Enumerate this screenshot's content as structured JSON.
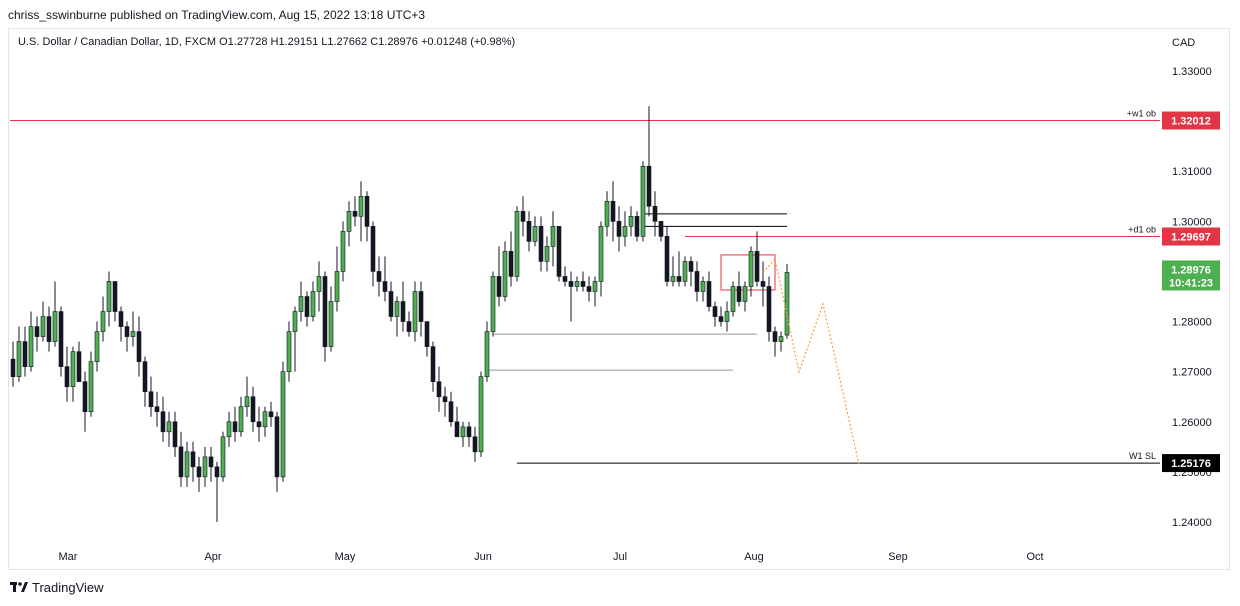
{
  "publisher_line": "chriss_sswinburne published on TradingView.com, Aug 15, 2022 13:18 UTC+3",
  "symbol_line": "U.S. Dollar / Canadian Dollar, 1D, FXCM  O1.27728  H1.29151  L1.27662  C1.28976  +0.01248 (+0.98%)",
  "currency": "CAD",
  "footer_brand": "TradingView",
  "icons": {
    "brand": "tradingview-logo-icon"
  },
  "colors": {
    "up": "#4caf50",
    "down": "#131722",
    "level": "#e03646",
    "projection": "#f7a23a"
  },
  "chart_data": {
    "type": "candlestick",
    "title": "U.S. Dollar / Canadian Dollar, 1D, FXCM",
    "ylabel": "CAD",
    "ylim": [
      1.2335,
      1.3425
    ],
    "y_ticks": [
      "1.24000",
      "1.25000",
      "1.26000",
      "1.27000",
      "1.28000",
      "1.29000",
      "1.30000",
      "1.31000",
      "1.32000",
      "1.33000"
    ],
    "x_labels": [
      "Mar",
      "Apr",
      "May",
      "Jun",
      "Jul",
      "Aug",
      "Sep",
      "Oct"
    ],
    "last_price": {
      "value": "1.28976",
      "countdown": "10:41:23"
    },
    "levels": [
      {
        "label": "+w1 ob",
        "value": 1.32012,
        "value_text": "1.32012",
        "color": "#e03646",
        "text_color": "#ffffff"
      },
      {
        "label": "+d1 ob",
        "value": 1.29697,
        "value_text": "1.29697",
        "color": "#e03646",
        "text_color": "#ffffff"
      },
      {
        "label": "W1 SL",
        "value": 1.25176,
        "value_text": "1.25176",
        "color": "#000000",
        "text_color": "#ffffff"
      }
    ],
    "candles": [
      [
        1.2725,
        1.276,
        1.267,
        1.269
      ],
      [
        1.269,
        1.279,
        1.268,
        1.276
      ],
      [
        1.276,
        1.279,
        1.269,
        1.271
      ],
      [
        1.271,
        1.282,
        1.27,
        1.279
      ],
      [
        1.279,
        1.281,
        1.274,
        1.277
      ],
      [
        1.277,
        1.284,
        1.276,
        1.281
      ],
      [
        1.281,
        1.283,
        1.274,
        1.276
      ],
      [
        1.276,
        1.288,
        1.275,
        1.282
      ],
      [
        1.282,
        1.283,
        1.269,
        1.271
      ],
      [
        1.271,
        1.275,
        1.264,
        1.267
      ],
      [
        1.267,
        1.275,
        1.264,
        1.274
      ],
      [
        1.274,
        1.276,
        1.268,
        1.268
      ],
      [
        1.268,
        1.27,
        1.258,
        1.262
      ],
      [
        1.262,
        1.274,
        1.261,
        1.272
      ],
      [
        1.272,
        1.28,
        1.27,
        1.278
      ],
      [
        1.278,
        1.285,
        1.276,
        1.282
      ],
      [
        1.282,
        1.29,
        1.279,
        1.288
      ],
      [
        1.288,
        1.288,
        1.28,
        1.282
      ],
      [
        1.282,
        1.283,
        1.276,
        1.279
      ],
      [
        1.279,
        1.28,
        1.274,
        1.277
      ],
      [
        1.277,
        1.282,
        1.275,
        1.278
      ],
      [
        1.278,
        1.281,
        1.269,
        1.272
      ],
      [
        1.272,
        1.273,
        1.263,
        1.266
      ],
      [
        1.266,
        1.269,
        1.261,
        1.263
      ],
      [
        1.263,
        1.266,
        1.259,
        1.262
      ],
      [
        1.262,
        1.265,
        1.256,
        1.258
      ],
      [
        1.258,
        1.262,
        1.255,
        1.26
      ],
      [
        1.26,
        1.262,
        1.253,
        1.255
      ],
      [
        1.255,
        1.258,
        1.247,
        1.249
      ],
      [
        1.249,
        1.256,
        1.247,
        1.254
      ],
      [
        1.254,
        1.256,
        1.248,
        1.251
      ],
      [
        1.251,
        1.253,
        1.246,
        1.249
      ],
      [
        1.249,
        1.255,
        1.247,
        1.253
      ],
      [
        1.253,
        1.255,
        1.248,
        1.251
      ],
      [
        1.251,
        1.252,
        1.24,
        1.249
      ],
      [
        1.249,
        1.258,
        1.248,
        1.257
      ],
      [
        1.257,
        1.262,
        1.255,
        1.26
      ],
      [
        1.26,
        1.263,
        1.256,
        1.258
      ],
      [
        1.258,
        1.265,
        1.257,
        1.263
      ],
      [
        1.263,
        1.269,
        1.261,
        1.265
      ],
      [
        1.265,
        1.267,
        1.258,
        1.26
      ],
      [
        1.26,
        1.263,
        1.256,
        1.259
      ],
      [
        1.259,
        1.263,
        1.257,
        1.262
      ],
      [
        1.262,
        1.264,
        1.259,
        1.261
      ],
      [
        1.261,
        1.262,
        1.246,
        1.249
      ],
      [
        1.249,
        1.272,
        1.248,
        1.27
      ],
      [
        1.27,
        1.28,
        1.268,
        1.278
      ],
      [
        1.278,
        1.283,
        1.27,
        1.282
      ],
      [
        1.282,
        1.288,
        1.28,
        1.285
      ],
      [
        1.285,
        1.286,
        1.279,
        1.281
      ],
      [
        1.281,
        1.288,
        1.28,
        1.286
      ],
      [
        1.286,
        1.292,
        1.282,
        1.289
      ],
      [
        1.289,
        1.29,
        1.272,
        1.275
      ],
      [
        1.275,
        1.287,
        1.274,
        1.284
      ],
      [
        1.284,
        1.295,
        1.282,
        1.29
      ],
      [
        1.29,
        1.3,
        1.288,
        1.298
      ],
      [
        1.298,
        1.304,
        1.295,
        1.302
      ],
      [
        1.302,
        1.305,
        1.299,
        1.301
      ],
      [
        1.301,
        1.308,
        1.296,
        1.305
      ],
      [
        1.305,
        1.306,
        1.296,
        1.299
      ],
      [
        1.299,
        1.3,
        1.287,
        1.29
      ],
      [
        1.29,
        1.293,
        1.285,
        1.288
      ],
      [
        1.288,
        1.293,
        1.284,
        1.286
      ],
      [
        1.286,
        1.288,
        1.28,
        1.281
      ],
      [
        1.281,
        1.285,
        1.277,
        1.284
      ],
      [
        1.284,
        1.288,
        1.278,
        1.28
      ],
      [
        1.28,
        1.282,
        1.277,
        1.278
      ],
      [
        1.278,
        1.288,
        1.276,
        1.286
      ],
      [
        1.286,
        1.288,
        1.277,
        1.28
      ],
      [
        1.28,
        1.28,
        1.273,
        1.275
      ],
      [
        1.275,
        1.276,
        1.266,
        1.268
      ],
      [
        1.268,
        1.271,
        1.262,
        1.265
      ],
      [
        1.265,
        1.267,
        1.261,
        1.264
      ],
      [
        1.264,
        1.266,
        1.259,
        1.26
      ],
      [
        1.26,
        1.263,
        1.257,
        1.257
      ],
      [
        1.257,
        1.26,
        1.255,
        1.259
      ],
      [
        1.259,
        1.26,
        1.255,
        1.257
      ],
      [
        1.257,
        1.259,
        1.252,
        1.254
      ],
      [
        1.254,
        1.27,
        1.253,
        1.269
      ],
      [
        1.269,
        1.28,
        1.268,
        1.278
      ],
      [
        1.278,
        1.29,
        1.277,
        1.289
      ],
      [
        1.289,
        1.295,
        1.283,
        1.285
      ],
      [
        1.285,
        1.296,
        1.284,
        1.294
      ],
      [
        1.294,
        1.298,
        1.287,
        1.289
      ],
      [
        1.289,
        1.303,
        1.288,
        1.302
      ],
      [
        1.302,
        1.305,
        1.297,
        1.3
      ],
      [
        1.3,
        1.302,
        1.294,
        1.296
      ],
      [
        1.296,
        1.301,
        1.295,
        1.299
      ],
      [
        1.299,
        1.301,
        1.29,
        1.292
      ],
      [
        1.292,
        1.297,
        1.29,
        1.295
      ],
      [
        1.295,
        1.302,
        1.291,
        1.299
      ],
      [
        1.299,
        1.299,
        1.288,
        1.289
      ],
      [
        1.289,
        1.291,
        1.287,
        1.288
      ],
      [
        1.288,
        1.29,
        1.28,
        1.287
      ],
      [
        1.287,
        1.289,
        1.286,
        1.288
      ],
      [
        1.288,
        1.29,
        1.286,
        1.287
      ],
      [
        1.287,
        1.289,
        1.284,
        1.286
      ],
      [
        1.286,
        1.289,
        1.283,
        1.288
      ],
      [
        1.288,
        1.3,
        1.285,
        1.299
      ],
      [
        1.299,
        1.306,
        1.297,
        1.304
      ],
      [
        1.304,
        1.308,
        1.296,
        1.3
      ],
      [
        1.3,
        1.303,
        1.294,
        1.297
      ],
      [
        1.297,
        1.302,
        1.295,
        1.299
      ],
      [
        1.299,
        1.303,
        1.297,
        1.301
      ],
      [
        1.301,
        1.302,
        1.296,
        1.297
      ],
      [
        1.297,
        1.312,
        1.296,
        1.311
      ],
      [
        1.311,
        1.323,
        1.301,
        1.303
      ],
      [
        1.303,
        1.306,
        1.297,
        1.3
      ],
      [
        1.3,
        1.3,
        1.296,
        1.297
      ],
      [
        1.297,
        1.299,
        1.287,
        1.288
      ],
      [
        1.288,
        1.293,
        1.287,
        1.289
      ],
      [
        1.289,
        1.294,
        1.287,
        1.288
      ],
      [
        1.288,
        1.293,
        1.287,
        1.292
      ],
      [
        1.292,
        1.293,
        1.287,
        1.29
      ],
      [
        1.29,
        1.292,
        1.284,
        1.286
      ],
      [
        1.286,
        1.289,
        1.284,
        1.288
      ],
      [
        1.288,
        1.29,
        1.282,
        1.283
      ],
      [
        1.283,
        1.284,
        1.279,
        1.281
      ],
      [
        1.281,
        1.283,
        1.279,
        1.28
      ],
      [
        1.28,
        1.284,
        1.278,
        1.282
      ],
      [
        1.282,
        1.288,
        1.281,
        1.287
      ],
      [
        1.287,
        1.29,
        1.283,
        1.284
      ],
      [
        1.284,
        1.288,
        1.282,
        1.287
      ],
      [
        1.287,
        1.295,
        1.285,
        1.294
      ],
      [
        1.294,
        1.298,
        1.287,
        1.288
      ],
      [
        1.288,
        1.292,
        1.283,
        1.287
      ],
      [
        1.287,
        1.289,
        1.276,
        1.278
      ],
      [
        1.278,
        1.279,
        1.273,
        1.276
      ],
      [
        1.276,
        1.278,
        1.274,
        1.277
      ],
      [
        1.2773,
        1.2915,
        1.2766,
        1.2898
      ]
    ],
    "annotations": {
      "horizontal_segments": [
        {
          "from_index": 105,
          "to_index": 129,
          "value": 1.3015,
          "color": "#000000"
        },
        {
          "from_index": 105,
          "to_index": 129,
          "value": 1.299,
          "color": "#000000"
        },
        {
          "from_index": 80,
          "to_index": 124,
          "value": 1.2775,
          "color": "#9598a1"
        },
        {
          "from_index": 79,
          "to_index": 120,
          "value": 1.2703,
          "color": "#9598a1"
        }
      ],
      "zone": {
        "from_index": 118,
        "to_index": 127,
        "top": 1.2933,
        "bottom": 1.2863,
        "color": "#e03646"
      },
      "projection_path": [
        [
          125,
          1.2898
        ],
        [
          127,
          1.2925
        ],
        [
          131,
          1.27
        ],
        [
          135,
          1.2835
        ],
        [
          141,
          1.2515
        ]
      ]
    }
  }
}
